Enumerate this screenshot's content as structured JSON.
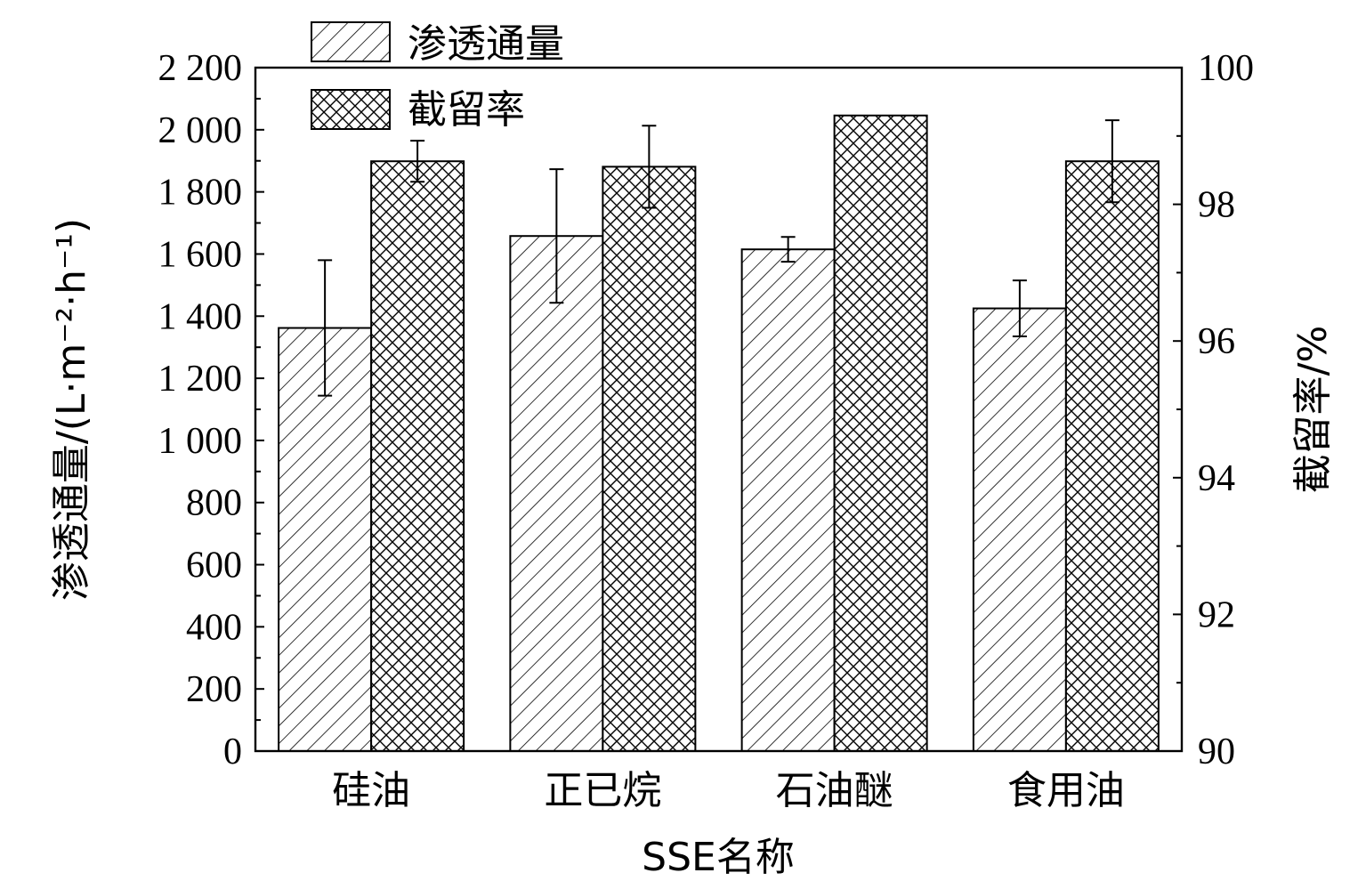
{
  "chart_data": {
    "type": "bar",
    "categories": [
      "硅油",
      "正已烷",
      "石油醚",
      "食用油"
    ],
    "xlabel": "SSE名称",
    "ylabel_left": "渗透通量/(L·m⁻²·h⁻¹)",
    "ylabel_right": "截留率/%",
    "ylim_left": [
      0,
      2200
    ],
    "ylim_right": [
      90,
      100
    ],
    "yticks_left": [
      "0",
      "200",
      "400",
      "600",
      "800",
      "1 000",
      "1 200",
      "1 400",
      "1 600",
      "1 800",
      "2 000",
      "2 200"
    ],
    "yticks_right": [
      "90",
      "92",
      "94",
      "96",
      "98",
      "100"
    ],
    "series": [
      {
        "name": "渗透通量",
        "axis": "left",
        "pattern": "diagonal-hatch",
        "values": [
          1362,
          1658,
          1615,
          1425
        ],
        "errors": [
          218,
          215,
          40,
          90
        ]
      },
      {
        "name": "截留率",
        "axis": "right",
        "pattern": "cross-hatch",
        "values": [
          98.63,
          98.55,
          99.3,
          98.63
        ],
        "errors": [
          0.3,
          0.6,
          0.0,
          0.6
        ]
      }
    ],
    "legend_position": "top-left",
    "grid": false,
    "colors": {
      "stroke": "#000000",
      "background": "#ffffff"
    }
  }
}
